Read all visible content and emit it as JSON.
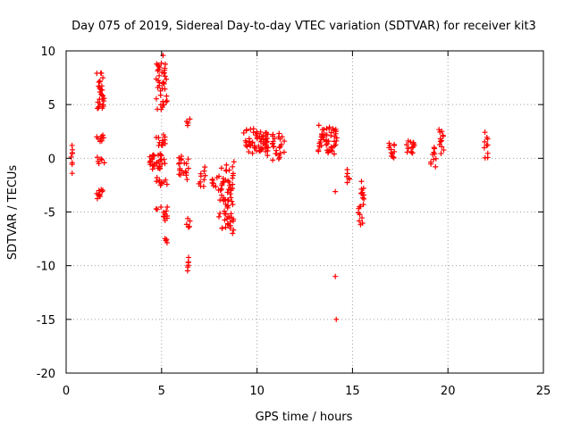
{
  "chart_data": {
    "type": "scatter",
    "title": "Day 075 of 2019, Sidereal Day-to-day VTEC variation (SDTVAR) for receiver kit3",
    "xlabel": "GPS time / hours",
    "ylabel": "SDTVAR / TECUs",
    "xlim": [
      0,
      25
    ],
    "ylim": [
      -20,
      10
    ],
    "xticks": [
      0,
      5,
      10,
      15,
      20,
      25
    ],
    "yticks": [
      -20,
      -15,
      -10,
      -5,
      0,
      5,
      10
    ],
    "grid": true,
    "marker": "+",
    "color": "#ff0000",
    "series": [
      {
        "name": "kit3",
        "clusters": [
          {
            "x": [
              0.25,
              0.35
            ],
            "y": [
              -1.6,
              1.7
            ],
            "n": 8
          },
          {
            "x": [
              1.6,
              2.0
            ],
            "y": [
              4.0,
              8.3
            ],
            "n": 30
          },
          {
            "x": [
              1.6,
              2.0
            ],
            "y": [
              1.5,
              2.2
            ],
            "n": 8
          },
          {
            "x": [
              1.6,
              2.0
            ],
            "y": [
              -0.6,
              0.1
            ],
            "n": 6
          },
          {
            "x": [
              1.6,
              2.0
            ],
            "y": [
              -3.8,
              -2.8
            ],
            "n": 10
          },
          {
            "x": [
              4.3,
              5.2
            ],
            "y": [
              -1.2,
              0.6
            ],
            "n": 35
          },
          {
            "x": [
              4.7,
              5.3
            ],
            "y": [
              4.0,
              9.8
            ],
            "n": 40
          },
          {
            "x": [
              4.7,
              5.3
            ],
            "y": [
              1.0,
              2.2
            ],
            "n": 12
          },
          {
            "x": [
              4.7,
              5.3
            ],
            "y": [
              -2.6,
              -1.8
            ],
            "n": 10
          },
          {
            "x": [
              4.7,
              5.3
            ],
            "y": [
              -6.0,
              -4.2
            ],
            "n": 12
          },
          {
            "x": [
              5.1,
              5.3
            ],
            "y": [
              -7.9,
              -7.4
            ],
            "n": 4
          },
          {
            "x": [
              5.9,
              6.5
            ],
            "y": [
              -2.0,
              0.4
            ],
            "n": 20
          },
          {
            "x": [
              6.3,
              6.5
            ],
            "y": [
              3.0,
              3.8
            ],
            "n": 4
          },
          {
            "x": [
              6.3,
              6.5
            ],
            "y": [
              -6.6,
              -5.6
            ],
            "n": 5
          },
          {
            "x": [
              6.3,
              6.5
            ],
            "y": [
              -10.5,
              -9.2
            ],
            "n": 6
          },
          {
            "x": [
              6.9,
              7.3
            ],
            "y": [
              -3.0,
              -0.8
            ],
            "n": 10
          },
          {
            "x": [
              7.6,
              8.0
            ],
            "y": [
              -3.0,
              -1.6
            ],
            "n": 8
          },
          {
            "x": [
              8.0,
              8.8
            ],
            "y": [
              -7.3,
              -0.2
            ],
            "n": 70
          },
          {
            "x": [
              9.3,
              10.6
            ],
            "y": [
              0.2,
              2.9
            ],
            "n": 60
          },
          {
            "x": [
              10.8,
              11.5
            ],
            "y": [
              -0.3,
              2.6
            ],
            "n": 25
          },
          {
            "x": [
              13.2,
              14.2
            ],
            "y": [
              0.3,
              3.2
            ],
            "n": 50
          },
          {
            "x": [
              14.0,
              14.2
            ],
            "y": [
              -3.2,
              -3.0
            ],
            "n": 1
          },
          {
            "x": [
              14.0,
              14.2
            ],
            "y": [
              -11.1,
              -10.9
            ],
            "n": 1
          },
          {
            "x": [
              14.1,
              14.2
            ],
            "y": [
              -15.1,
              -14.9
            ],
            "n": 1
          },
          {
            "x": [
              14.7,
              14.9
            ],
            "y": [
              -2.5,
              -0.9
            ],
            "n": 6
          },
          {
            "x": [
              15.3,
              15.6
            ],
            "y": [
              -6.5,
              -1.8
            ],
            "n": 20
          },
          {
            "x": [
              16.9,
              17.2
            ],
            "y": [
              -0.2,
              1.6
            ],
            "n": 12
          },
          {
            "x": [
              17.8,
              18.4
            ],
            "y": [
              0.3,
              1.8
            ],
            "n": 15
          },
          {
            "x": [
              19.1,
              19.4
            ],
            "y": [
              -1.0,
              1.2
            ],
            "n": 10
          },
          {
            "x": [
              19.5,
              19.8
            ],
            "y": [
              0.4,
              3.0
            ],
            "n": 12
          },
          {
            "x": [
              21.9,
              22.1
            ],
            "y": [
              -0.2,
              2.5
            ],
            "n": 10
          }
        ]
      }
    ]
  }
}
